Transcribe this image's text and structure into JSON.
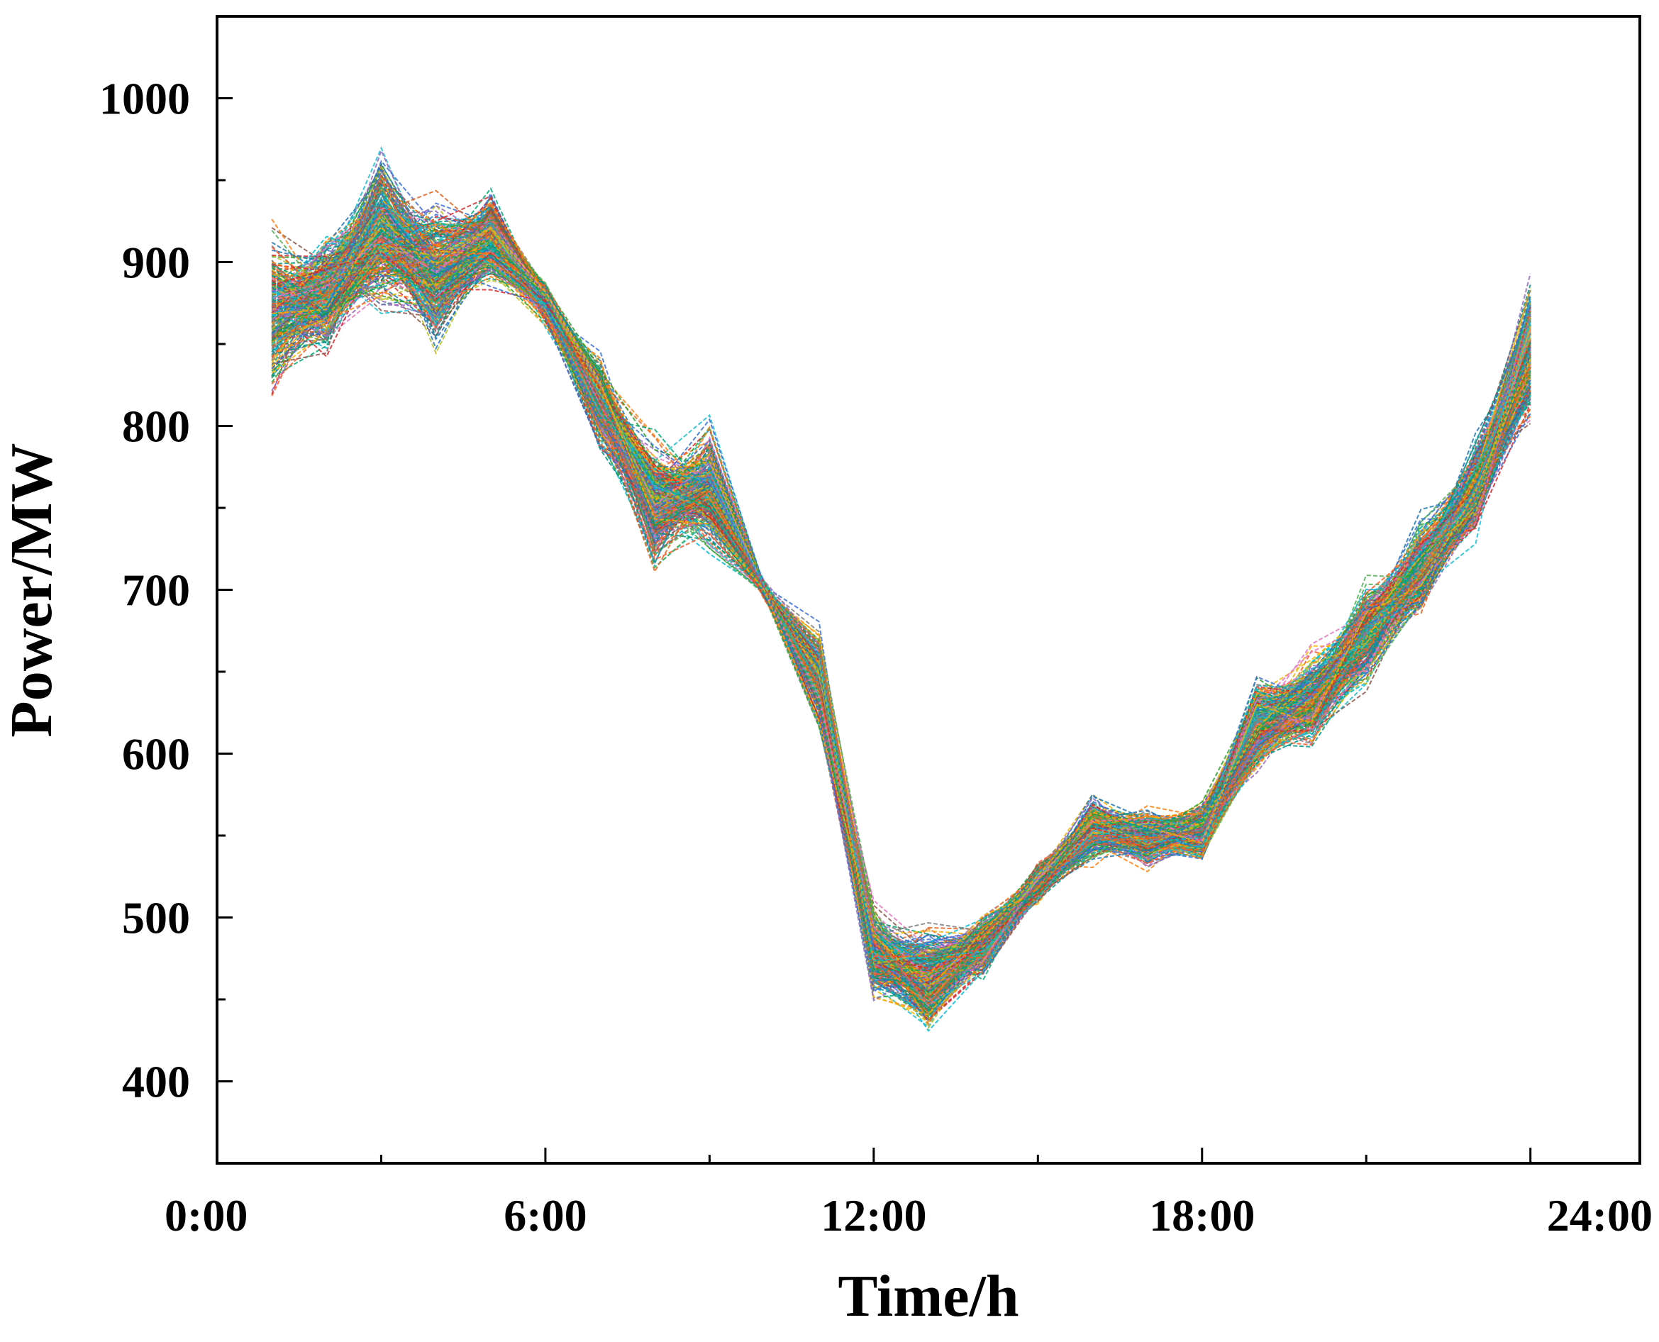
{
  "chart_data": {
    "type": "line",
    "title": "",
    "xlabel": "Time/h",
    "ylabel": "Power/MW",
    "xlim": [
      0,
      26
    ],
    "ylim": [
      350,
      1050
    ],
    "x_ticks": [
      {
        "value": 0,
        "label": "0:00"
      },
      {
        "value": 6,
        "label": "6:00"
      },
      {
        "value": 12,
        "label": "12:00"
      },
      {
        "value": 18,
        "label": "18:00"
      },
      {
        "value": 24,
        "label": "24:00"
      }
    ],
    "x_minor_ticks": [
      3,
      9,
      15,
      21
    ],
    "y_ticks": [
      {
        "value": 400,
        "label": "400"
      },
      {
        "value": 500,
        "label": "500"
      },
      {
        "value": 600,
        "label": "600"
      },
      {
        "value": 700,
        "label": "700"
      },
      {
        "value": 800,
        "label": "800"
      },
      {
        "value": 900,
        "label": "900"
      },
      {
        "value": 1000,
        "label": "1000"
      }
    ],
    "y_minor_ticks": [
      450,
      550,
      650,
      750,
      850,
      950
    ],
    "grid": false,
    "legend": "none",
    "line_style": "dashed",
    "scenario_count": 1000,
    "x": [
      1,
      2,
      3,
      4,
      5,
      6,
      7,
      8,
      9,
      10,
      11,
      12,
      13,
      14,
      15,
      16,
      17,
      18,
      19,
      20,
      21,
      22,
      23,
      24
    ],
    "mean": [
      870,
      882,
      918,
      892,
      915,
      875,
      815,
      752,
      763,
      700,
      645,
      478,
      462,
      482,
      520,
      555,
      548,
      552,
      618,
      632,
      672,
      714,
      762,
      850
    ],
    "spread": [
      38,
      28,
      35,
      35,
      22,
      10,
      20,
      30,
      28,
      4,
      22,
      22,
      26,
      16,
      10,
      15,
      14,
      14,
      22,
      22,
      24,
      24,
      24,
      34
    ],
    "palette": [
      "#1f77b4",
      "#ff7f0e",
      "#2ca02c",
      "#d62728",
      "#9467bd",
      "#8c564b",
      "#e377c2",
      "#7f7f7f",
      "#bcbd22",
      "#17becf",
      "#3a6fd8",
      "#e8631c",
      "#00a878",
      "#f4b400",
      "#00bcd4",
      "#4caf50",
      "#ff5722",
      "#009688"
    ]
  }
}
